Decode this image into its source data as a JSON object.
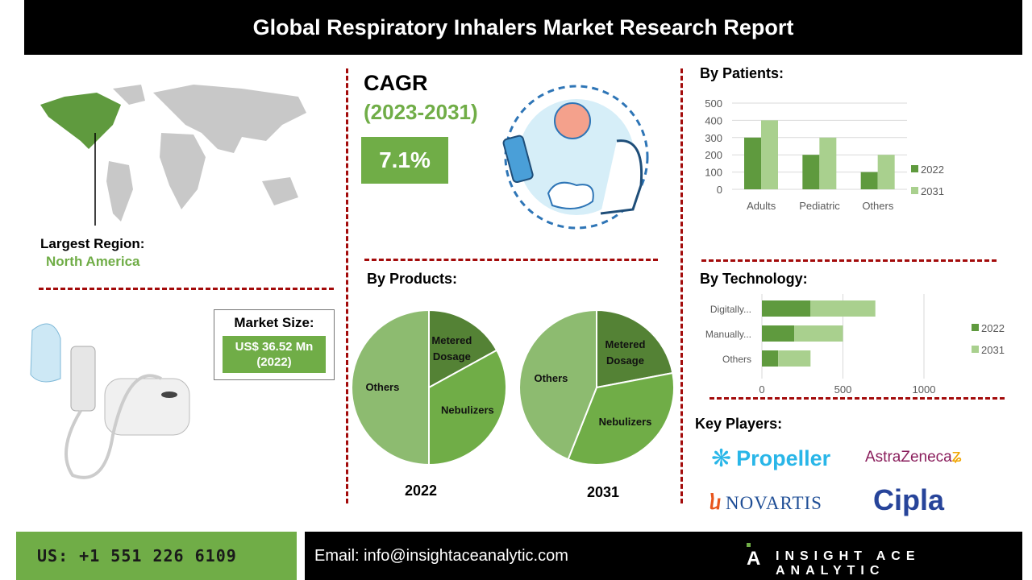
{
  "header": {
    "title": "Global Respiratory Inhalers Market Research Report"
  },
  "region": {
    "label": "Largest Region:",
    "value": "North America"
  },
  "market_size": {
    "label": "Market Size:",
    "value": "US$ 36.52 Mn",
    "year": "(2022)"
  },
  "cagr": {
    "label": "CAGR",
    "period": "(2023-2031)",
    "value": "7.1%"
  },
  "sections": {
    "patients": "By Patients:",
    "products": "By Products:",
    "technology": "By Technology:",
    "key_players": "Key Players:"
  },
  "key_players": [
    "Propeller",
    "AstraZeneca",
    "NOVARTIS",
    "Cipla"
  ],
  "footer": {
    "phone": "US: +1 551 226 6109",
    "email": "Email: info@insightaceanalytic.com",
    "brand": "INSIGHT ACE ANALYTIC"
  },
  "colors": {
    "dark_green": "#5f9a3e",
    "light_green": "#a9d08e",
    "accent": "#70ad47",
    "divider": "#a30b0b"
  },
  "chart_data": [
    {
      "type": "bar",
      "title": "By Patients:",
      "categories": [
        "Adults",
        "Pediatric",
        "Others"
      ],
      "series": [
        {
          "name": "2022",
          "values": [
            300,
            200,
            100
          ]
        },
        {
          "name": "2031",
          "values": [
            400,
            300,
            200
          ]
        }
      ],
      "ylim": [
        0,
        500
      ],
      "yticks": [
        0,
        100,
        200,
        300,
        400,
        500
      ],
      "grid": true,
      "legend": "right"
    },
    {
      "type": "bar",
      "orientation": "horizontal",
      "stacked": true,
      "title": "By Technology:",
      "categories": [
        "Digitally...",
        "Manually...",
        "Others"
      ],
      "series": [
        {
          "name": "2022",
          "values": [
            300,
            200,
            100
          ]
        },
        {
          "name": "2031",
          "values": [
            400,
            300,
            200
          ]
        }
      ],
      "xlim": [
        0,
        1000
      ],
      "xticks": [
        0,
        500,
        1000
      ],
      "grid": true,
      "legend": "right"
    },
    {
      "type": "pie",
      "title": "2022",
      "labels": [
        "Metered Dosage",
        "Nebulizers",
        "Others"
      ],
      "values": [
        17,
        33,
        50
      ]
    },
    {
      "type": "pie",
      "title": "2031",
      "labels": [
        "Metered Dosage",
        "Nebulizers",
        "Others"
      ],
      "values": [
        22,
        34,
        44
      ]
    }
  ]
}
